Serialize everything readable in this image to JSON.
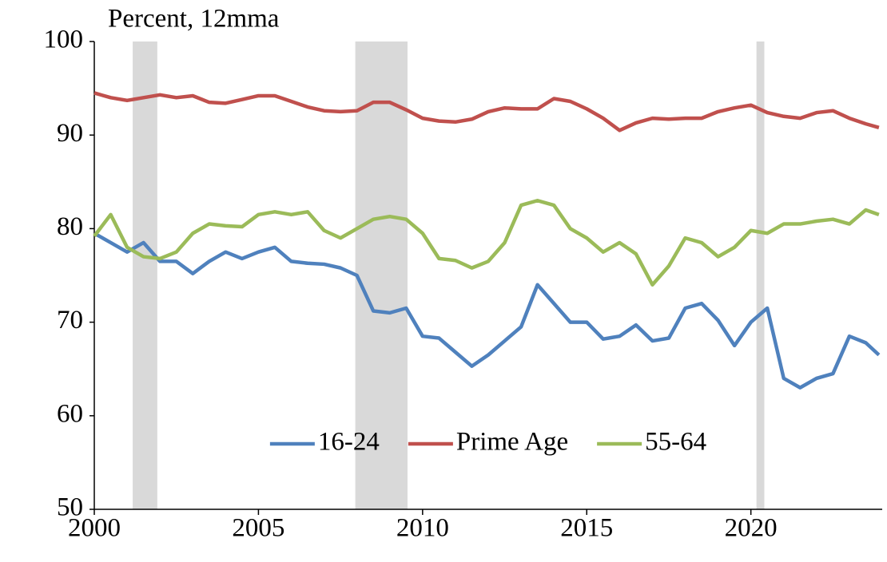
{
  "chart_data": {
    "type": "line",
    "title": "Percent, 12mma",
    "x": [
      2000,
      2000.5,
      2001,
      2001.5,
      2002,
      2002.5,
      2003,
      2003.5,
      2004,
      2004.5,
      2005,
      2005.5,
      2006,
      2006.5,
      2007,
      2007.5,
      2008,
      2008.5,
      2009,
      2009.5,
      2010,
      2010.5,
      2011,
      2011.5,
      2012,
      2012.5,
      2013,
      2013.5,
      2014,
      2014.5,
      2015,
      2015.5,
      2016,
      2016.5,
      2017,
      2017.5,
      2018,
      2018.5,
      2019,
      2019.5,
      2020,
      2020.5,
      2021,
      2021.5,
      2022,
      2022.5,
      2023,
      2023.5,
      2023.9
    ],
    "series": [
      {
        "name": "16-24",
        "color": "#4f81bd",
        "values": [
          79.5,
          78.5,
          77.5,
          78.5,
          76.5,
          76.5,
          75.2,
          76.5,
          77.5,
          76.8,
          77.5,
          78,
          76.5,
          76.3,
          76.2,
          75.8,
          75,
          71.2,
          71,
          71.5,
          68.5,
          68.3,
          66.8,
          65.3,
          66.5,
          68,
          69.5,
          74,
          72,
          70,
          70,
          68.2,
          68.5,
          69.7,
          68,
          68.3,
          71.5,
          72,
          70.2,
          67.5,
          70,
          71.5,
          64,
          63,
          64,
          64.5,
          68.5,
          67.8,
          66.5
        ]
      },
      {
        "name": "Prime Age",
        "color": "#c0504d",
        "values": [
          94.5,
          94,
          93.7,
          94,
          94.3,
          94,
          94.2,
          93.5,
          93.4,
          93.8,
          94.2,
          94.2,
          93.6,
          93,
          92.6,
          92.5,
          92.6,
          93.5,
          93.5,
          92.7,
          91.8,
          91.5,
          91.4,
          91.7,
          92.5,
          92.9,
          92.8,
          92.8,
          93.9,
          93.6,
          92.8,
          91.8,
          90.5,
          91.3,
          91.8,
          91.7,
          91.8,
          91.8,
          92.5,
          92.9,
          93.2,
          92.4,
          92,
          91.8,
          92.4,
          92.6,
          91.8,
          91.2,
          90.8
        ]
      },
      {
        "name": "55-64",
        "color": "#9bbb59",
        "values": [
          79.2,
          81.5,
          78,
          77,
          76.8,
          77.5,
          79.5,
          80.5,
          80.3,
          80.2,
          81.5,
          81.8,
          81.5,
          81.8,
          79.8,
          79,
          80,
          81,
          81.3,
          81,
          79.5,
          76.8,
          76.6,
          75.8,
          76.5,
          78.5,
          82.5,
          83,
          82.5,
          80,
          79,
          77.5,
          78.5,
          77.3,
          74,
          76,
          79,
          78.5,
          77,
          78,
          79.8,
          79.5,
          80.5,
          80.5,
          80.8,
          81,
          80.5,
          82,
          81.5
        ]
      }
    ],
    "shaded_periods": [
      [
        2001.17,
        2001.92
      ],
      [
        2007.95,
        2009.54
      ],
      [
        2020.17,
        2020.41
      ]
    ],
    "shade_color": "#d9d9d9",
    "xlim": [
      2000,
      2024
    ],
    "xticks": [
      2000,
      2005,
      2010,
      2015,
      2020
    ],
    "ylim": [
      50,
      100
    ],
    "yticks": [
      50,
      60,
      70,
      80,
      90,
      100
    ],
    "grid": false,
    "legend": "lower center"
  }
}
